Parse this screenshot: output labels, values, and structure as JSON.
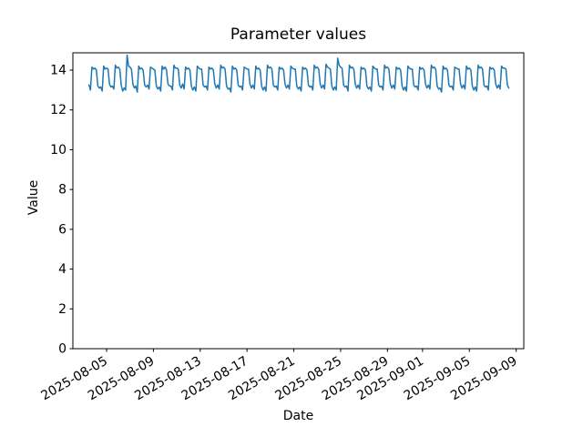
{
  "chart_data": {
    "type": "line",
    "title": "Parameter values",
    "xlabel": "Date",
    "ylabel": "Value",
    "grid": false,
    "legend": false,
    "line_color": "#1f77b4",
    "axis_color": "#000000",
    "background_color": "#ffffff",
    "y_ticks": [
      0,
      2,
      4,
      6,
      8,
      10,
      12,
      14
    ],
    "ylim": [
      0,
      14.87
    ],
    "x_tick_labels": [
      "2025-08-05",
      "2025-08-09",
      "2025-08-13",
      "2025-08-17",
      "2025-08-21",
      "2025-08-25",
      "2025-08-29",
      "2025-09-01",
      "2025-09-05",
      "2025-09-09"
    ],
    "day_offset_epoch": "2025-08-03",
    "x_tick_day_offsets": [
      2,
      6,
      10,
      14,
      18,
      22,
      26,
      29,
      33,
      37
    ],
    "xlim_day_offsets": [
      -0.88,
      37.65
    ],
    "series": [
      {
        "name": "parameter",
        "start": "2025-08-03T12:00",
        "interval_hours": 3,
        "day_offset_start": 0.5,
        "values": [
          13.25,
          13.0,
          14.15,
          14.05,
          14.1,
          14.0,
          13.2,
          13.1,
          13.15,
          12.95,
          14.2,
          14.05,
          14.1,
          14.05,
          13.3,
          13.15,
          13.2,
          13.05,
          14.25,
          14.1,
          14.15,
          14.05,
          13.25,
          12.95,
          13.1,
          13.0,
          14.75,
          14.2,
          14.15,
          14.05,
          13.3,
          13.1,
          13.2,
          12.9,
          14.2,
          14.05,
          14.1,
          14.0,
          13.25,
          13.15,
          13.25,
          13.05,
          14.15,
          14.1,
          14.05,
          14.0,
          13.2,
          13.05,
          13.15,
          12.95,
          14.2,
          14.05,
          14.15,
          14.0,
          13.3,
          13.2,
          13.2,
          13.0,
          14.25,
          14.1,
          14.1,
          14.05,
          13.25,
          13.1,
          13.3,
          13.05,
          14.15,
          14.05,
          14.1,
          14.0,
          13.2,
          13.0,
          13.15,
          12.95,
          14.2,
          14.1,
          14.05,
          14.05,
          13.25,
          13.15,
          13.2,
          13.0,
          14.15,
          14.05,
          14.1,
          14.0,
          13.3,
          13.1,
          13.25,
          13.05,
          14.25,
          14.1,
          14.15,
          14.05,
          13.2,
          13.05,
          13.1,
          12.9,
          14.2,
          14.05,
          14.1,
          14.0,
          13.25,
          13.15,
          13.2,
          13.0,
          14.15,
          14.1,
          14.05,
          14.05,
          13.3,
          13.1,
          13.25,
          13.05,
          14.2,
          14.05,
          14.1,
          14.0,
          13.2,
          13.0,
          13.15,
          12.95,
          14.25,
          14.1,
          14.15,
          14.05,
          13.25,
          13.15,
          13.2,
          13.0,
          14.15,
          14.05,
          14.1,
          14.0,
          13.3,
          13.1,
          13.25,
          13.05,
          14.2,
          14.1,
          14.05,
          14.05,
          13.2,
          13.05,
          13.15,
          12.95,
          14.15,
          14.05,
          14.1,
          14.0,
          13.25,
          13.15,
          13.2,
          13.0,
          14.25,
          14.1,
          14.15,
          14.05,
          13.3,
          13.1,
          13.25,
          13.05,
          14.3,
          14.15,
          14.1,
          14.05,
          13.2,
          13.0,
          13.15,
          13.0,
          14.6,
          14.25,
          14.15,
          14.1,
          13.25,
          13.15,
          13.2,
          12.95,
          14.25,
          14.1,
          14.15,
          14.05,
          13.3,
          13.1,
          13.25,
          13.05,
          14.15,
          14.05,
          14.1,
          14.0,
          13.2,
          13.05,
          13.15,
          12.95,
          14.2,
          14.1,
          14.05,
          14.05,
          13.25,
          13.15,
          13.2,
          13.0,
          14.25,
          14.1,
          14.15,
          14.05,
          13.3,
          13.1,
          13.25,
          13.05,
          14.15,
          14.05,
          14.1,
          14.0,
          13.2,
          13.0,
          13.15,
          12.95,
          14.2,
          14.1,
          14.05,
          14.05,
          13.25,
          13.15,
          13.2,
          13.0,
          14.15,
          14.05,
          14.1,
          14.0,
          13.3,
          13.1,
          13.25,
          13.05,
          14.25,
          14.1,
          14.15,
          14.05,
          13.2,
          13.05,
          13.1,
          12.9,
          14.2,
          14.05,
          14.1,
          14.0,
          13.25,
          13.15,
          13.2,
          13.0,
          14.15,
          14.1,
          14.05,
          14.05,
          13.3,
          13.1,
          13.25,
          13.05,
          14.2,
          14.05,
          14.1,
          14.0,
          13.2,
          13.0,
          13.15,
          12.95,
          14.25,
          14.1,
          14.15,
          14.05,
          13.25,
          13.15,
          13.2,
          13.0,
          14.15,
          14.05,
          14.1,
          14.0,
          13.3,
          13.1,
          13.25,
          13.05,
          14.2,
          14.1,
          14.1,
          14.05,
          13.25,
          13.1
        ]
      }
    ]
  }
}
